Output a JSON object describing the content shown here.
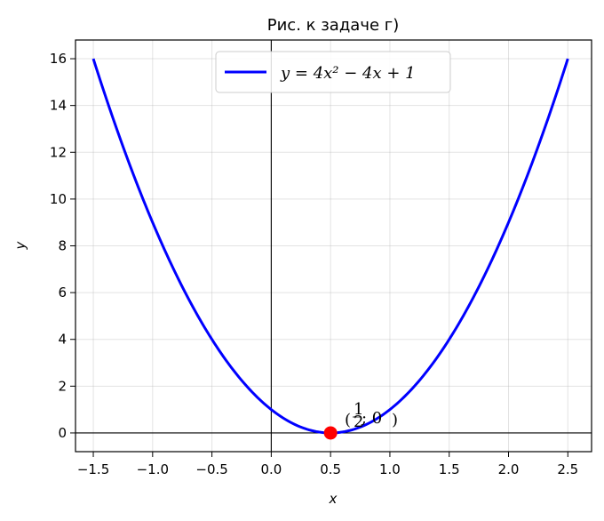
{
  "chart_data": {
    "type": "line",
    "title": "Рис. к задаче г)",
    "xlabel": "x",
    "ylabel": "y",
    "xlim": [
      -1.65,
      2.7
    ],
    "ylim": [
      -0.8,
      16.8
    ],
    "xticks": [
      -1.5,
      -1.0,
      -0.5,
      0.0,
      0.5,
      1.0,
      1.5,
      2.0,
      2.5
    ],
    "xtick_labels": [
      "−1.5",
      "−1.0",
      "−0.5",
      "0.0",
      "0.5",
      "1.0",
      "1.5",
      "2.0",
      "2.5"
    ],
    "yticks": [
      0,
      2,
      4,
      6,
      8,
      10,
      12,
      14,
      16
    ],
    "ytick_labels": [
      "0",
      "2",
      "4",
      "6",
      "8",
      "10",
      "12",
      "14",
      "16"
    ],
    "grid": true,
    "legend_position": "top-center",
    "series": [
      {
        "name": "y = 4x² − 4x + 1",
        "color": "#0000ff",
        "function": "4x^2 - 4x + 1",
        "x_range": [
          -1.5,
          2.5
        ],
        "x": [
          -1.5,
          -1.25,
          -1.0,
          -0.75,
          -0.5,
          -0.25,
          0.0,
          0.25,
          0.5,
          0.75,
          1.0,
          1.25,
          1.5,
          1.75,
          2.0,
          2.25,
          2.5
        ],
        "y": [
          16,
          12.25,
          9,
          6.25,
          4,
          2.25,
          1,
          0.25,
          0,
          0.25,
          1,
          2.25,
          4,
          6.25,
          9,
          12.25,
          16
        ]
      }
    ],
    "points": [
      {
        "x": 0.5,
        "y": 0,
        "color": "#ff0000"
      }
    ],
    "annotation": {
      "open": "(",
      "num": "1",
      "den": "2",
      "sep": "; 0",
      "close": ")"
    }
  }
}
